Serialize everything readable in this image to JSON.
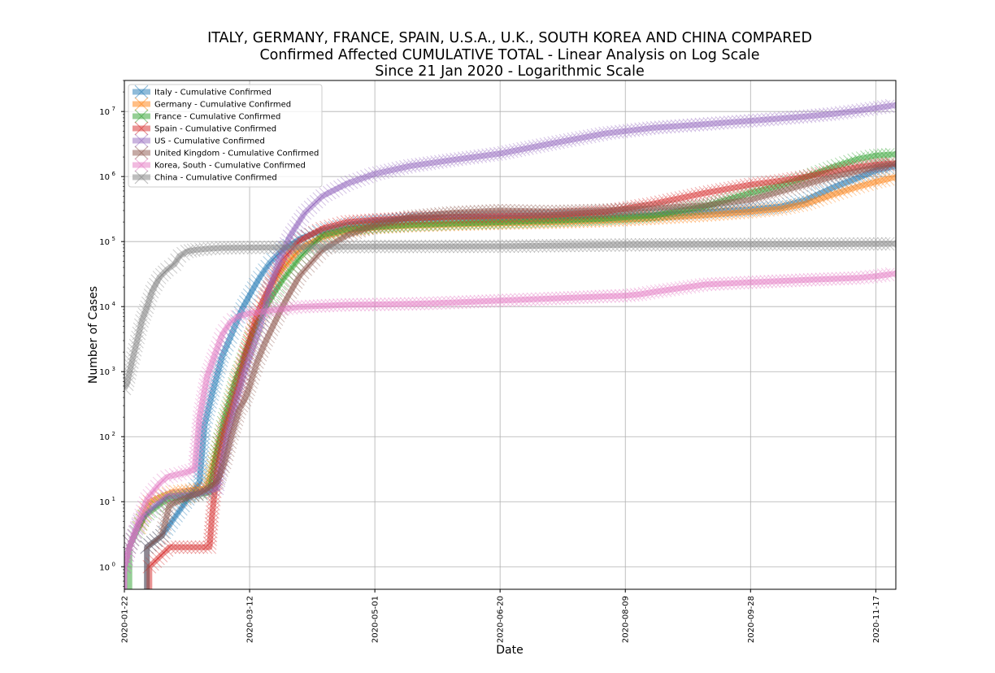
{
  "chart_data": {
    "type": "line",
    "title_lines": [
      "ITALY, GERMANY, FRANCE, SPAIN, U.S.A., U.K., SOUTH KOREA AND CHINA COMPARED",
      "Confirmed Affected CUMULATIVE TOTAL - Linear Analysis on Log Scale",
      "Since 21 Jan 2020 - Logarithmic Scale"
    ],
    "xlabel": "Date",
    "ylabel": "Number of Cases",
    "yscale": "log",
    "xlim": [
      "2020-01-22",
      "2020-11-25"
    ],
    "ylim": [
      0.45,
      30000000
    ],
    "x_ticks": [
      "2020-01-22",
      "2020-03-12",
      "2020-05-01",
      "2020-06-20",
      "2020-08-09",
      "2020-09-28",
      "2020-11-17"
    ],
    "y_ticks": [
      {
        "base": "10",
        "exp": "0",
        "value": 1
      },
      {
        "base": "10",
        "exp": "1",
        "value": 10
      },
      {
        "base": "10",
        "exp": "2",
        "value": 100
      },
      {
        "base": "10",
        "exp": "3",
        "value": 1000
      },
      {
        "base": "10",
        "exp": "4",
        "value": 10000
      },
      {
        "base": "10",
        "exp": "5",
        "value": 100000
      },
      {
        "base": "10",
        "exp": "6",
        "value": 1000000
      },
      {
        "base": "10",
        "exp": "7",
        "value": 10000000
      }
    ],
    "grid": true,
    "legend_position": "top-left",
    "marker": "x",
    "series": [
      {
        "name": "Italy - Cumulative Confirmed",
        "color": "#1f77b4",
        "points": [
          [
            "2020-01-31",
            2
          ],
          [
            "2020-02-06",
            3
          ],
          [
            "2020-02-21",
            20
          ],
          [
            "2020-02-23",
            150
          ],
          [
            "2020-02-26",
            450
          ],
          [
            "2020-03-01",
            1700
          ],
          [
            "2020-03-05",
            3900
          ],
          [
            "2020-03-09",
            9200
          ],
          [
            "2020-03-12",
            15000
          ],
          [
            "2020-03-16",
            28000
          ],
          [
            "2020-03-20",
            47000
          ],
          [
            "2020-03-25",
            74000
          ],
          [
            "2020-04-01",
            110000
          ],
          [
            "2020-04-10",
            147000
          ],
          [
            "2020-04-20",
            181000
          ],
          [
            "2020-05-01",
            206000
          ],
          [
            "2020-05-15",
            224000
          ],
          [
            "2020-06-01",
            233000
          ],
          [
            "2020-06-20",
            238000
          ],
          [
            "2020-07-10",
            242000
          ],
          [
            "2020-08-01",
            248000
          ],
          [
            "2020-08-20",
            256000
          ],
          [
            "2020-09-10",
            284000
          ],
          [
            "2020-09-28",
            312000
          ],
          [
            "2020-10-10",
            345000
          ],
          [
            "2020-10-20",
            435000
          ],
          [
            "2020-10-31",
            680000
          ],
          [
            "2020-11-10",
            960000
          ],
          [
            "2020-11-17",
            1240000
          ],
          [
            "2020-11-25",
            1450000
          ]
        ]
      },
      {
        "name": "Germany - Cumulative Confirmed",
        "color": "#ff7f0e",
        "points": [
          [
            "2020-01-28",
            4
          ],
          [
            "2020-02-01",
            10
          ],
          [
            "2020-02-10",
            14
          ],
          [
            "2020-02-24",
            16
          ],
          [
            "2020-02-28",
            60
          ],
          [
            "2020-03-03",
            200
          ],
          [
            "2020-03-07",
            800
          ],
          [
            "2020-03-10",
            1500
          ],
          [
            "2020-03-13",
            3700
          ],
          [
            "2020-03-16",
            7300
          ],
          [
            "2020-03-20",
            19000
          ],
          [
            "2020-03-25",
            37000
          ],
          [
            "2020-04-01",
            77000
          ],
          [
            "2020-04-10",
            118000
          ],
          [
            "2020-04-20",
            147000
          ],
          [
            "2020-05-01",
            164000
          ],
          [
            "2020-05-15",
            175000
          ],
          [
            "2020-06-01",
            183000
          ],
          [
            "2020-06-20",
            191000
          ],
          [
            "2020-07-10",
            198000
          ],
          [
            "2020-08-01",
            210000
          ],
          [
            "2020-08-20",
            228000
          ],
          [
            "2020-09-10",
            255000
          ],
          [
            "2020-09-28",
            288000
          ],
          [
            "2020-10-10",
            320000
          ],
          [
            "2020-10-20",
            380000
          ],
          [
            "2020-10-31",
            530000
          ],
          [
            "2020-11-10",
            700000
          ],
          [
            "2020-11-17",
            830000
          ],
          [
            "2020-11-25",
            980000
          ]
        ]
      },
      {
        "name": "France - Cumulative Confirmed",
        "color": "#2ca02c",
        "points": [
          [
            "2020-01-24",
            2
          ],
          [
            "2020-01-26",
            3
          ],
          [
            "2020-01-30",
            6
          ],
          [
            "2020-02-08",
            11
          ],
          [
            "2020-02-15",
            12
          ],
          [
            "2020-02-25",
            14
          ],
          [
            "2020-02-28",
            60
          ],
          [
            "2020-03-02",
            190
          ],
          [
            "2020-03-06",
            650
          ],
          [
            "2020-03-10",
            1800
          ],
          [
            "2020-03-13",
            3700
          ],
          [
            "2020-03-16",
            6600
          ],
          [
            "2020-03-20",
            12500
          ],
          [
            "2020-03-25",
            25000
          ],
          [
            "2020-04-01",
            57000
          ],
          [
            "2020-04-10",
            125000
          ],
          [
            "2020-04-20",
            155000
          ],
          [
            "2020-05-01",
            168000
          ],
          [
            "2020-05-15",
            180000
          ],
          [
            "2020-06-01",
            189000
          ],
          [
            "2020-06-20",
            198000
          ],
          [
            "2020-07-10",
            208000
          ],
          [
            "2020-08-01",
            225000
          ],
          [
            "2020-08-20",
            250000
          ],
          [
            "2020-09-10",
            350000
          ],
          [
            "2020-09-28",
            560000
          ],
          [
            "2020-10-10",
            730000
          ],
          [
            "2020-10-20",
            970000
          ],
          [
            "2020-10-31",
            1400000
          ],
          [
            "2020-11-10",
            1860000
          ],
          [
            "2020-11-17",
            2100000
          ],
          [
            "2020-11-25",
            2200000
          ]
        ]
      },
      {
        "name": "Spain - Cumulative Confirmed",
        "color": "#d62728",
        "points": [
          [
            "2020-02-01",
            1
          ],
          [
            "2020-02-09",
            2
          ],
          [
            "2020-02-25",
            2
          ],
          [
            "2020-02-26",
            6
          ],
          [
            "2020-02-28",
            30
          ],
          [
            "2020-03-02",
            120
          ],
          [
            "2020-03-05",
            280
          ],
          [
            "2020-03-08",
            680
          ],
          [
            "2020-03-10",
            1700
          ],
          [
            "2020-03-12",
            3000
          ],
          [
            "2020-03-15",
            7800
          ],
          [
            "2020-03-18",
            13900
          ],
          [
            "2020-03-22",
            29000
          ],
          [
            "2020-03-26",
            57000
          ],
          [
            "2020-04-01",
            104000
          ],
          [
            "2020-04-10",
            158000
          ],
          [
            "2020-04-20",
            200000
          ],
          [
            "2020-05-01",
            215000
          ],
          [
            "2020-05-15",
            230000
          ],
          [
            "2020-06-01",
            240000
          ],
          [
            "2020-06-20",
            246000
          ],
          [
            "2020-07-10",
            253000
          ],
          [
            "2020-08-01",
            288000
          ],
          [
            "2020-08-20",
            380000
          ],
          [
            "2020-09-10",
            560000
          ],
          [
            "2020-09-28",
            750000
          ],
          [
            "2020-10-10",
            860000
          ],
          [
            "2020-10-20",
            990000
          ],
          [
            "2020-10-31",
            1200000
          ],
          [
            "2020-11-10",
            1400000
          ],
          [
            "2020-11-17",
            1520000
          ],
          [
            "2020-11-25",
            1600000
          ]
        ]
      },
      {
        "name": "US - Cumulative Confirmed",
        "color": "#9467bd",
        "points": [
          [
            "2020-01-22",
            1
          ],
          [
            "2020-01-24",
            2
          ],
          [
            "2020-01-28",
            5
          ],
          [
            "2020-02-02",
            8
          ],
          [
            "2020-02-08",
            12
          ],
          [
            "2020-02-20",
            13
          ],
          [
            "2020-02-28",
            16
          ],
          [
            "2020-03-03",
            100
          ],
          [
            "2020-03-07",
            400
          ],
          [
            "2020-03-10",
            1000
          ],
          [
            "2020-03-13",
            2200
          ],
          [
            "2020-03-16",
            4600
          ],
          [
            "2020-03-20",
            19000
          ],
          [
            "2020-03-24",
            54000
          ],
          [
            "2020-03-28",
            120000
          ],
          [
            "2020-04-03",
            275000
          ],
          [
            "2020-04-10",
            500000
          ],
          [
            "2020-04-20",
            780000
          ],
          [
            "2020-05-01",
            1100000
          ],
          [
            "2020-05-15",
            1450000
          ],
          [
            "2020-06-01",
            1800000
          ],
          [
            "2020-06-20",
            2260000
          ],
          [
            "2020-07-10",
            3200000
          ],
          [
            "2020-08-01",
            4600000
          ],
          [
            "2020-08-09",
            5000000
          ],
          [
            "2020-08-20",
            5600000
          ],
          [
            "2020-09-10",
            6400000
          ],
          [
            "2020-09-28",
            7200000
          ],
          [
            "2020-10-10",
            7800000
          ],
          [
            "2020-10-20",
            8400000
          ],
          [
            "2020-10-31",
            9200000
          ],
          [
            "2020-11-10",
            10300000
          ],
          [
            "2020-11-17",
            11300000
          ],
          [
            "2020-11-25",
            12500000
          ]
        ]
      },
      {
        "name": "United Kingdom - Cumulative Confirmed",
        "color": "#8c564b",
        "points": [
          [
            "2020-01-31",
            2
          ],
          [
            "2020-02-06",
            3
          ],
          [
            "2020-02-09",
            9
          ],
          [
            "2020-02-12",
            10
          ],
          [
            "2020-02-23",
            15
          ],
          [
            "2020-02-28",
            20
          ],
          [
            "2020-03-02",
            40
          ],
          [
            "2020-03-05",
            110
          ],
          [
            "2020-03-08",
            270
          ],
          [
            "2020-03-10",
            370
          ],
          [
            "2020-03-12",
            600
          ],
          [
            "2020-03-15",
            1400
          ],
          [
            "2020-03-18",
            2700
          ],
          [
            "2020-03-22",
            5700
          ],
          [
            "2020-03-26",
            11700
          ],
          [
            "2020-04-01",
            30000
          ],
          [
            "2020-04-10",
            74000
          ],
          [
            "2020-04-20",
            126000
          ],
          [
            "2020-05-01",
            178000
          ],
          [
            "2020-05-15",
            240000
          ],
          [
            "2020-06-01",
            277000
          ],
          [
            "2020-06-20",
            300000
          ],
          [
            "2020-07-10",
            289000
          ],
          [
            "2020-08-01",
            304000
          ],
          [
            "2020-08-20",
            324000
          ],
          [
            "2020-09-10",
            360000
          ],
          [
            "2020-09-28",
            440000
          ],
          [
            "2020-10-10",
            590000
          ],
          [
            "2020-10-20",
            760000
          ],
          [
            "2020-10-31",
            1000000
          ],
          [
            "2020-11-10",
            1220000
          ],
          [
            "2020-11-17",
            1400000
          ],
          [
            "2020-11-25",
            1560000
          ]
        ]
      },
      {
        "name": "Korea, South - Cumulative Confirmed",
        "color": "#e377c2",
        "points": [
          [
            "2020-01-22",
            1
          ],
          [
            "2020-01-24",
            2
          ],
          [
            "2020-01-27",
            4
          ],
          [
            "2020-01-31",
            11
          ],
          [
            "2020-02-05",
            19
          ],
          [
            "2020-02-08",
            24
          ],
          [
            "2020-02-15",
            28
          ],
          [
            "2020-02-19",
            31
          ],
          [
            "2020-02-21",
            200
          ],
          [
            "2020-02-24",
            830
          ],
          [
            "2020-02-27",
            1770
          ],
          [
            "2020-03-01",
            3700
          ],
          [
            "2020-03-04",
            5600
          ],
          [
            "2020-03-07",
            7000
          ],
          [
            "2020-03-12",
            7870
          ],
          [
            "2020-03-20",
            8650
          ],
          [
            "2020-04-01",
            9900
          ],
          [
            "2020-04-20",
            10670
          ],
          [
            "2020-05-01",
            10780
          ],
          [
            "2020-05-20",
            11120
          ],
          [
            "2020-06-01",
            11540
          ],
          [
            "2020-06-20",
            12370
          ],
          [
            "2020-07-10",
            13280
          ],
          [
            "2020-08-01",
            14390
          ],
          [
            "2020-08-09",
            14700
          ],
          [
            "2020-08-15",
            15500
          ],
          [
            "2020-08-20",
            16700
          ],
          [
            "2020-09-10",
            21900
          ],
          [
            "2020-09-28",
            23600
          ],
          [
            "2020-10-20",
            25700
          ],
          [
            "2020-11-10",
            27600
          ],
          [
            "2020-11-17",
            29300
          ],
          [
            "2020-11-25",
            32300
          ]
        ]
      },
      {
        "name": "China - Cumulative Confirmed",
        "color": "#7f7f7f",
        "points": [
          [
            "2020-01-22",
            550
          ],
          [
            "2020-01-23",
            640
          ],
          [
            "2020-01-25",
            1400
          ],
          [
            "2020-01-27",
            2900
          ],
          [
            "2020-01-29",
            6000
          ],
          [
            "2020-01-31",
            9800
          ],
          [
            "2020-02-02",
            17000
          ],
          [
            "2020-02-05",
            28000
          ],
          [
            "2020-02-08",
            37000
          ],
          [
            "2020-02-11",
            44700
          ],
          [
            "2020-02-13",
            59900
          ],
          [
            "2020-02-16",
            70500
          ],
          [
            "2020-02-20",
            75000
          ],
          [
            "2020-02-25",
            77800
          ],
          [
            "2020-03-01",
            79900
          ],
          [
            "2020-03-12",
            80900
          ],
          [
            "2020-04-01",
            82300
          ],
          [
            "2020-05-01",
            83900
          ],
          [
            "2020-06-20",
            84500
          ],
          [
            "2020-08-09",
            88800
          ],
          [
            "2020-09-28",
            90500
          ],
          [
            "2020-11-17",
            92000
          ],
          [
            "2020-11-25",
            92500
          ]
        ]
      }
    ]
  }
}
